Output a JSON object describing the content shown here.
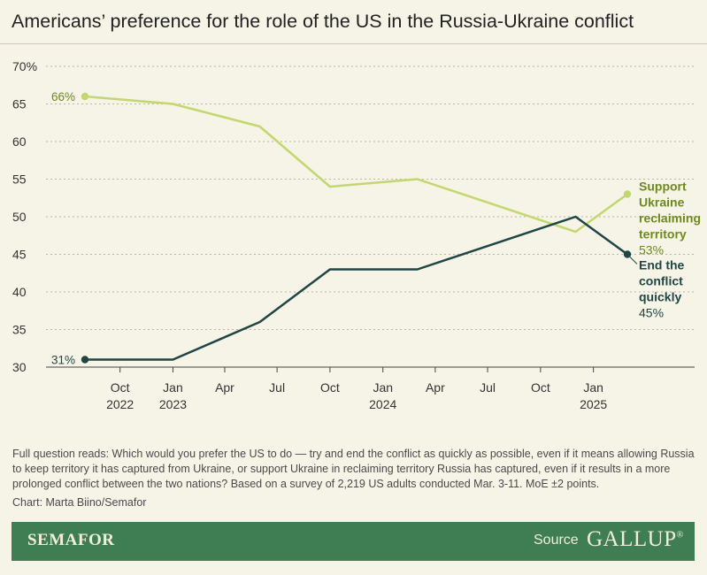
{
  "header": {
    "title": "Americans’ preference for the role of the US in the Russia-Ukraine conflict"
  },
  "chart_data": {
    "type": "line",
    "ylim": [
      30,
      70
    ],
    "y_ticks": [
      {
        "value": 70,
        "label": "70%"
      },
      {
        "value": 65,
        "label": "65"
      },
      {
        "value": 60,
        "label": "60"
      },
      {
        "value": 55,
        "label": "55"
      },
      {
        "value": 50,
        "label": "50"
      },
      {
        "value": 45,
        "label": "45"
      },
      {
        "value": 40,
        "label": "40"
      },
      {
        "value": 35,
        "label": "35"
      },
      {
        "value": 30,
        "label": "30"
      }
    ],
    "x_range": [
      "2022-08-01",
      "2025-04-20"
    ],
    "x_ticks": [
      {
        "date": "2022-10-01",
        "label": "Oct",
        "year": "2022"
      },
      {
        "date": "2023-01-01",
        "label": "Jan",
        "year": "2023"
      },
      {
        "date": "2023-04-01",
        "label": "Apr",
        "year": ""
      },
      {
        "date": "2023-07-01",
        "label": "Jul",
        "year": ""
      },
      {
        "date": "2023-10-01",
        "label": "Oct",
        "year": ""
      },
      {
        "date": "2024-01-01",
        "label": "Jan",
        "year": "2024"
      },
      {
        "date": "2024-04-01",
        "label": "Apr",
        "year": ""
      },
      {
        "date": "2024-07-01",
        "label": "Jul",
        "year": ""
      },
      {
        "date": "2024-10-01",
        "label": "Oct",
        "year": ""
      },
      {
        "date": "2025-01-01",
        "label": "Jan",
        "year": "2025"
      }
    ],
    "series": [
      {
        "name": "Support Ukraine reclaiming territory",
        "color": "#c2d86a",
        "label_color": "#6d8a1b",
        "label_lines": [
          "Support",
          "Ukraine",
          "reclaiming",
          "territory"
        ],
        "start_label": "66%",
        "end_label": "53%",
        "points": [
          {
            "date": "2022-08-01",
            "value": 66
          },
          {
            "date": "2023-01-01",
            "value": 65
          },
          {
            "date": "2023-06-01",
            "value": 62
          },
          {
            "date": "2023-10-01",
            "value": 54
          },
          {
            "date": "2024-03-01",
            "value": 55
          },
          {
            "date": "2024-12-01",
            "value": 48
          },
          {
            "date": "2025-03-01",
            "value": 53
          }
        ]
      },
      {
        "name": "End the conflict quickly",
        "color": "#1f4645",
        "label_color": "#1f4645",
        "label_lines": [
          "End the",
          "conflict",
          "quickly"
        ],
        "start_label": "31%",
        "end_label": "45%",
        "points": [
          {
            "date": "2022-08-01",
            "value": 31
          },
          {
            "date": "2023-01-01",
            "value": 31
          },
          {
            "date": "2023-06-01",
            "value": 36
          },
          {
            "date": "2023-10-01",
            "value": 43
          },
          {
            "date": "2024-03-01",
            "value": 43
          },
          {
            "date": "2024-12-01",
            "value": 50
          },
          {
            "date": "2025-03-01",
            "value": 45
          }
        ]
      }
    ]
  },
  "footnote": "Full question reads: Which would you prefer the US to do — try and end the conflict as quickly as possible, even if it means allowing Russia to keep territory it has captured from Ukraine, or support Ukraine in reclaiming territory Russia has captured, even if it results in a more prolonged conflict between the two nations? Based on a survey of 2,219 US adults conducted Mar. 3-11. MoE ±2 points.",
  "credit": "Chart: Marta Biino/Semafor",
  "footer": {
    "brand": "SEMAFOR",
    "source_label": "Source",
    "source_name": "GALLUP",
    "source_mark": "®"
  }
}
